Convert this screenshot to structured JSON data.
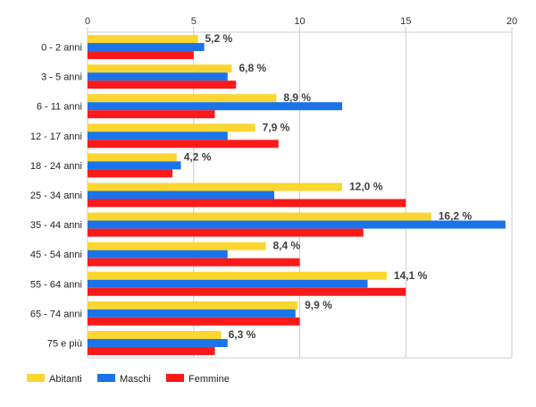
{
  "chart_data": {
    "type": "bar",
    "orientation": "horizontal",
    "categories": [
      "0 - 2 anni",
      "3 - 5 anni",
      "6 - 11 anni",
      "12 - 17 anni",
      "18 - 24 anni",
      "25 - 34 anni",
      "35 - 44 anni",
      "45 - 54 anni",
      "55 - 64 anni",
      "65 - 74 anni",
      "75 e più"
    ],
    "series": [
      {
        "name": "Abitanti",
        "color": "#fbd630",
        "values": [
          5.2,
          6.8,
          8.9,
          7.9,
          4.2,
          12.0,
          16.2,
          8.4,
          14.1,
          9.9,
          6.3
        ]
      },
      {
        "name": "Maschi",
        "color": "#1a73e8",
        "values": [
          5.5,
          6.6,
          12.0,
          6.6,
          4.4,
          8.8,
          19.7,
          6.6,
          13.2,
          9.8,
          6.6
        ]
      },
      {
        "name": "Femmine",
        "color": "#fa1a1a",
        "values": [
          5.0,
          7.0,
          6.0,
          9.0,
          4.0,
          15.0,
          13.0,
          10.0,
          15.0,
          10.0,
          6.0
        ]
      }
    ],
    "data_labels": [
      "5,2 %",
      "6,8 %",
      "8,9 %",
      "7,9 %",
      "4,2 %",
      "12,0 %",
      "16,2 %",
      "8,4 %",
      "14,1 %",
      "9,9 %",
      "6,3 %"
    ],
    "xlim": [
      0,
      20
    ],
    "xticks": [
      0,
      5,
      10,
      15,
      20
    ],
    "grid": true,
    "legend_position": "bottom-left"
  }
}
